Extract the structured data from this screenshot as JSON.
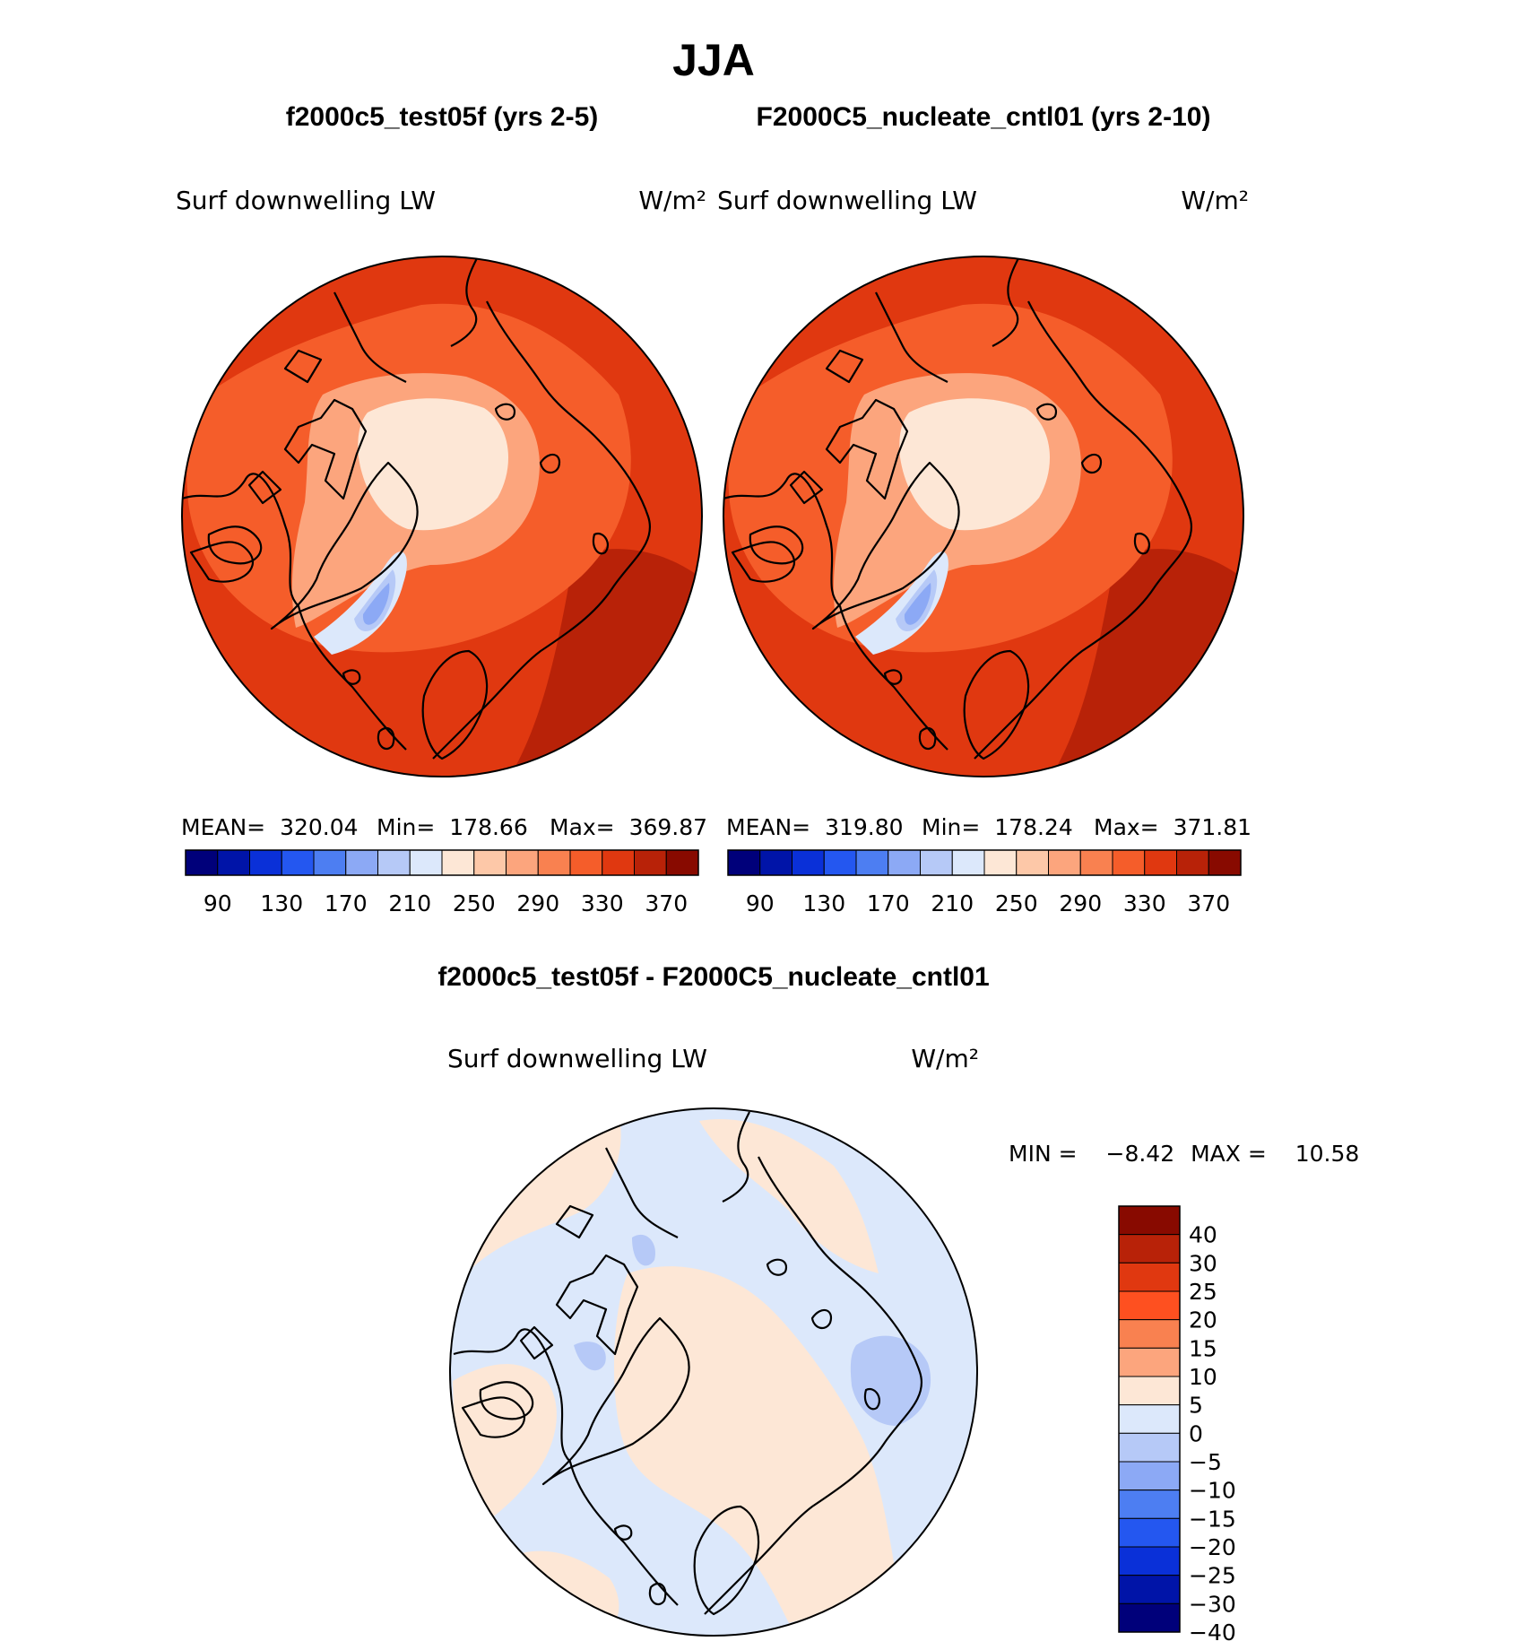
{
  "page": {
    "title": "JJA",
    "difference_title": "f2000c5_test05f - F2000C5_nucleate_cntl01"
  },
  "panels": [
    {
      "case_title": "f2000c5_test05f (yrs 2-5)",
      "variable": "Surf downwelling LW",
      "units": "W/m²",
      "stats": {
        "mean": "320.04",
        "min": "178.66",
        "max": "369.87"
      }
    },
    {
      "case_title": "F2000C5_nucleate_cntl01 (yrs 2-10)",
      "variable": "Surf downwelling LW",
      "units": "W/m²",
      "stats": {
        "mean": "319.80",
        "min": "178.24",
        "max": "371.81"
      }
    }
  ],
  "difference_panel": {
    "variable": "Surf downwelling LW",
    "units": "W/m²",
    "stats": {
      "min": "−8.42",
      "max": "10.58"
    }
  },
  "colorbar_field": {
    "colors": [
      "#00007a",
      "#0014a8",
      "#0a30d8",
      "#2457f0",
      "#4d7ef2",
      "#8ca9f5",
      "#b6c9f7",
      "#dce8fb",
      "#fde7d6",
      "#fdc8a8",
      "#fca57d",
      "#f98150",
      "#f55d2a",
      "#e03810",
      "#b82208",
      "#880a00"
    ],
    "tick_labels": [
      "90",
      "130",
      "170",
      "210",
      "250",
      "290",
      "330",
      "370"
    ]
  },
  "colorbar_diff": {
    "colors": [
      "#880a00",
      "#b82208",
      "#e03810",
      "#fe5020",
      "#f98150",
      "#fca57d",
      "#fde7d6",
      "#dce8fb",
      "#b6c9f7",
      "#8ca9f5",
      "#4d7ef2",
      "#2457f0",
      "#0a30d8",
      "#0014a8",
      "#00007a"
    ],
    "tick_labels": [
      "40",
      "30",
      "25",
      "20",
      "15",
      "10",
      "5",
      "0",
      "−5",
      "−10",
      "−15",
      "−20",
      "−25",
      "−30",
      "−40"
    ]
  },
  "colors": {
    "field_base": "#e03810",
    "field_outer": "#b82208",
    "field_mid": "#f55d2a",
    "field_light": "#fca57d",
    "field_pale": "#fde7d6",
    "diff_base": "#dce8fb",
    "diff_warm": "#fde7d6",
    "diff_cool": "#b6c9f7"
  }
}
